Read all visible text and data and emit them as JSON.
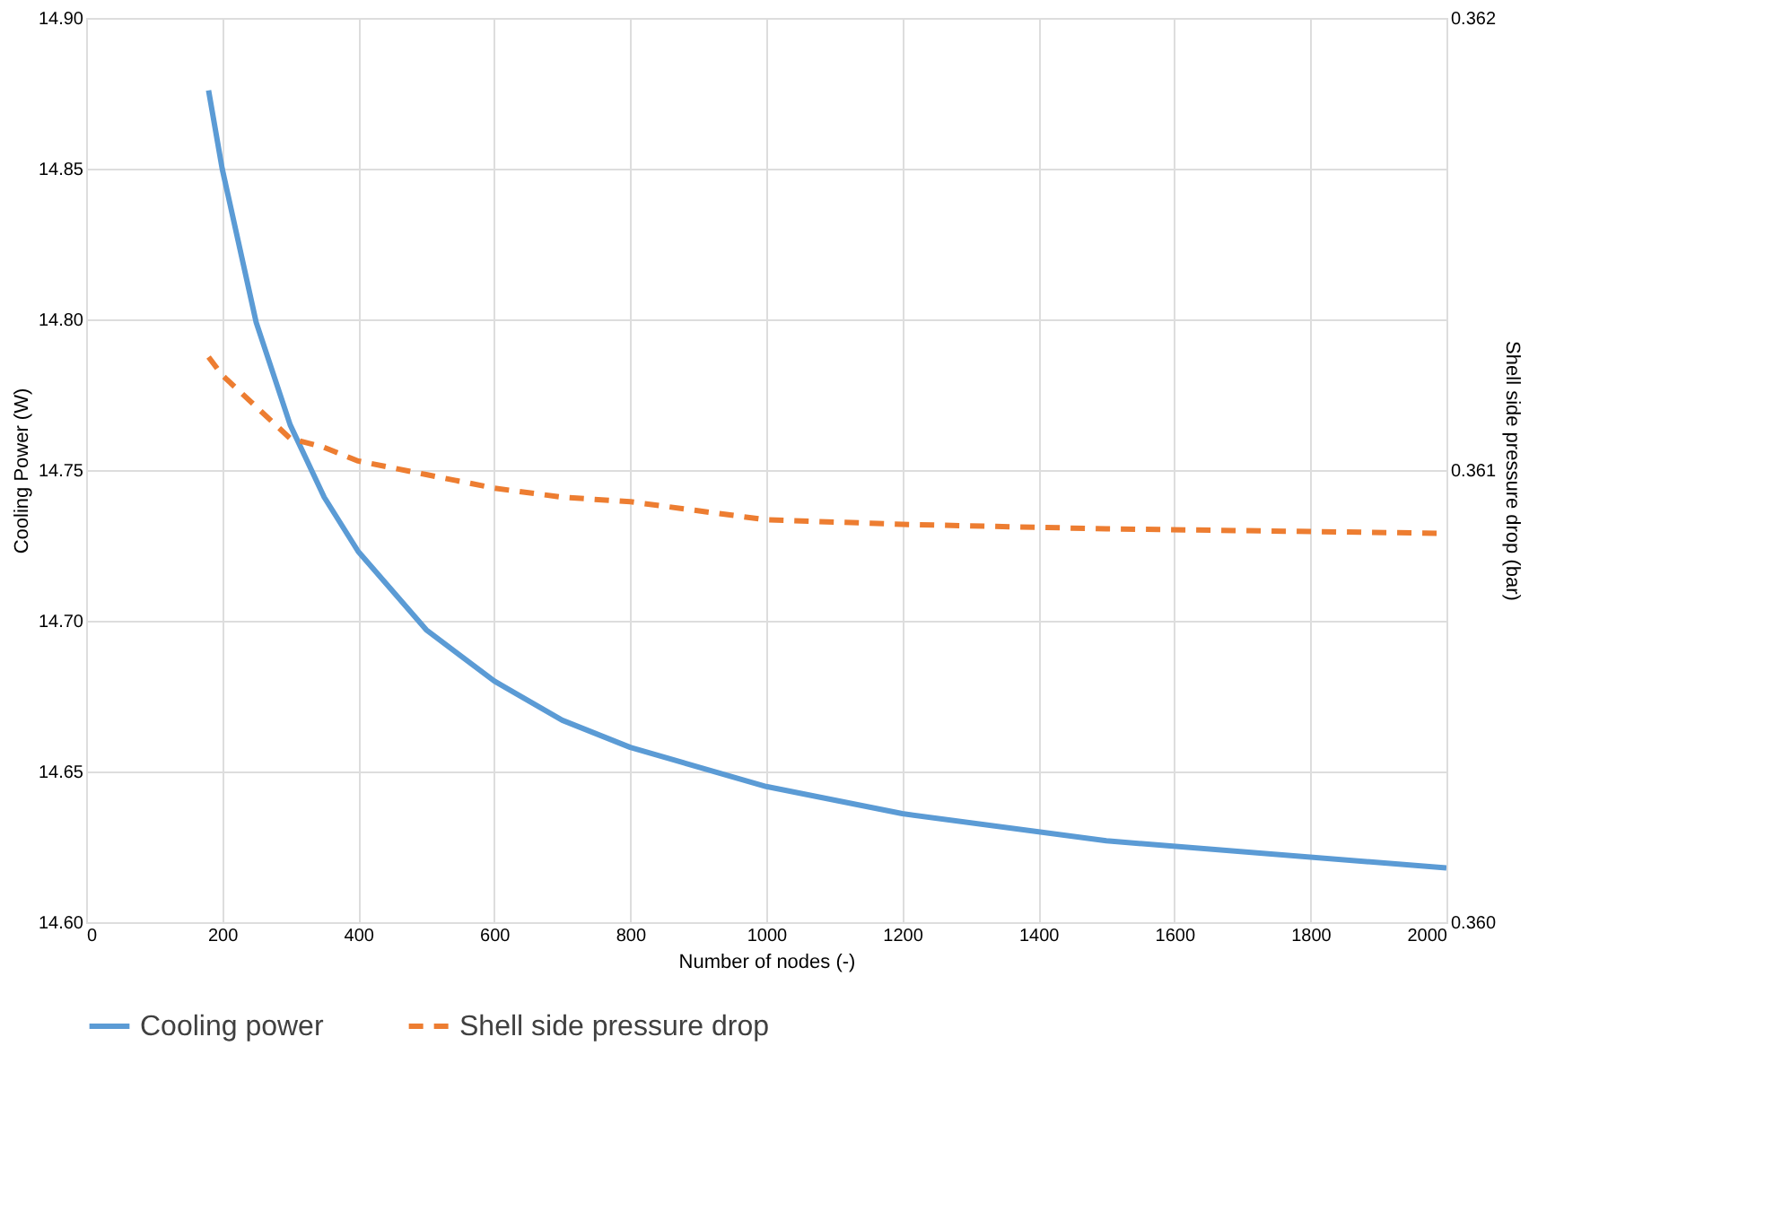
{
  "chart_data": {
    "type": "line",
    "xlabel": "Number of nodes (-)",
    "ylabel": "Cooling Power (W)",
    "y2label": "Shell side pressure drop (bar)",
    "x": [
      180,
      200,
      250,
      300,
      350,
      400,
      500,
      600,
      700,
      800,
      1000,
      1200,
      1500,
      2000
    ],
    "series": [
      {
        "name": "Cooling power",
        "color": "#5b9bd5",
        "line_style": "solid",
        "values": [
          14.876,
          14.85,
          14.799,
          14.765,
          14.741,
          14.723,
          14.697,
          14.68,
          14.667,
          14.658,
          14.645,
          14.636,
          14.627,
          14.618
        ]
      },
      {
        "name": "Shell side pressure drop",
        "color": "#ed7d31",
        "line_style": "dashed",
        "axis": "y2",
        "values": [
          0.36125,
          0.36121,
          0.36114,
          0.36107,
          0.36105,
          0.36102,
          0.36099,
          0.36096,
          0.36094,
          0.36093,
          0.36089,
          0.36088,
          0.36087,
          0.36086
        ]
      }
    ],
    "xlim": [
      0,
      2000
    ],
    "xticks": [
      0,
      200,
      400,
      600,
      800,
      1000,
      1200,
      1400,
      1600,
      1800,
      2000
    ],
    "ylim": [
      14.6,
      14.9
    ],
    "yticks": [
      {
        "value": 14.6,
        "label": "14.60"
      },
      {
        "value": 14.65,
        "label": "14.65"
      },
      {
        "value": 14.7,
        "label": "14.70"
      },
      {
        "value": 14.75,
        "label": "14.75"
      },
      {
        "value": 14.8,
        "label": "14.80"
      },
      {
        "value": 14.85,
        "label": "14.85"
      },
      {
        "value": 14.9,
        "label": "14.90"
      }
    ],
    "y2lim": [
      0.36,
      0.362
    ],
    "y2ticks": [
      {
        "value": 0.36,
        "label": "0.360"
      },
      {
        "value": 0.361,
        "label": "0.361"
      },
      {
        "value": 0.362,
        "label": "0.362"
      }
    ],
    "grid": true,
    "legend": "bottom"
  }
}
